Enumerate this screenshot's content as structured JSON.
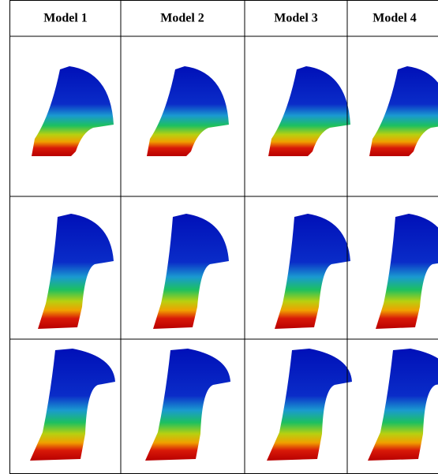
{
  "table": {
    "header": [
      "Model 1",
      "Model 2",
      "Model 3",
      "Model 4"
    ]
  }
}
